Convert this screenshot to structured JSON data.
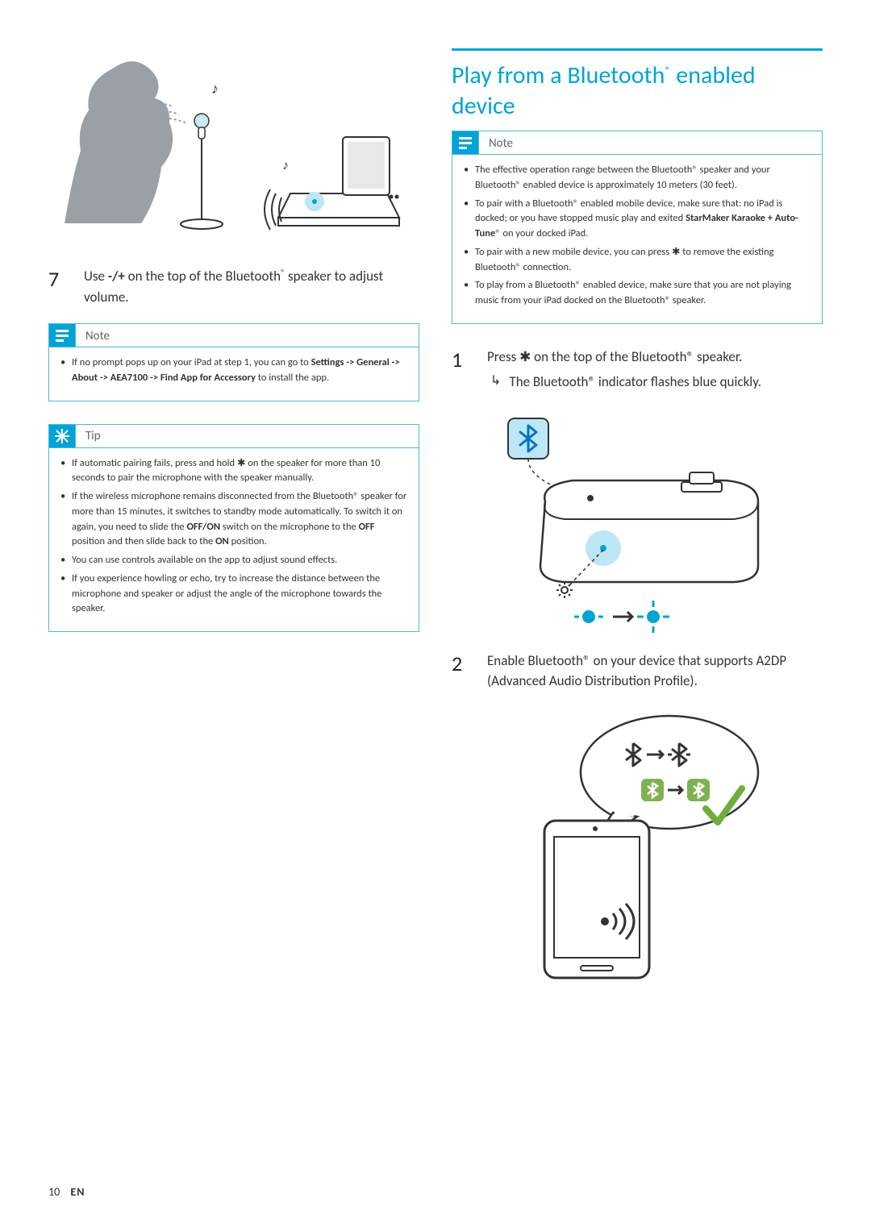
{
  "colors": {
    "accent": "#00a4d6",
    "border": "#4db7d8",
    "text": "#333333",
    "muted": "#666666",
    "silhouette": "#9aa0a6"
  },
  "left": {
    "step7": {
      "num": "7",
      "text_pre": "Use ",
      "text_bold": "-/+",
      "text_post": " on the top of the Bluetooth",
      "sup": "®",
      "text_end": " speaker to adjust volume."
    },
    "note": {
      "label": "Note",
      "items": [
        {
          "pre": "If no prompt pops up on your iPad at step 1, you can go to ",
          "bold": "Settings -> General -> About -> AEA7100 -> Find App for Accessory",
          "post": " to install the app."
        }
      ]
    },
    "tip": {
      "label": "Tip",
      "items": [
        "If automatic pairing fails, press and hold ✱ on the speaker for more than 10 seconds to pair the microphone with the speaker manually.",
        "If the wireless microphone remains disconnected from the Bluetooth® speaker for more than 15 minutes, it switches to standby mode automatically. To switch it on again, you need to slide the OFF/ON switch on the microphone to the OFF position and then slide back to the ON position.",
        "You can use controls available on the app to adjust sound effects.",
        "If you experience howling or echo, try to increase the distance between the microphone and speaker or adjust the angle of the microphone towards the speaker."
      ],
      "bold_tokens": [
        "OFF/ON",
        "OFF",
        "ON"
      ]
    }
  },
  "right": {
    "title_line1": "Play from a Bluetooth",
    "title_sup": "®",
    "title_line2": "enabled device",
    "note": {
      "label": "Note",
      "items": [
        "The effective operation range between the Bluetooth® speaker and your Bluetooth® enabled device is approximately 10 meters (30 feet).",
        "To pair with a Bluetooth® enabled mobile device, make sure that: no iPad is docked; or you have stopped music play and exited StarMaker Karaoke + Auto-Tune® on your docked iPad.",
        "To pair with a new mobile device, you can press ✱ to remove the existing Bluetooth® connection.",
        "To play from a Bluetooth® enabled device, make sure that you are not playing music from your iPad docked on the Bluetooth® speaker."
      ],
      "bold_tokens": [
        "StarMaker Karaoke + Auto-Tune"
      ]
    },
    "step1": {
      "num": "1",
      "text": "Press ✱ on the top of the Bluetooth® speaker.",
      "sub": "The Bluetooth® indicator flashes blue quickly."
    },
    "step2": {
      "num": "2",
      "text": "Enable Bluetooth® on your device that supports A2DP (Advanced Audio Distribution Profile)."
    }
  },
  "footer": {
    "page": "10",
    "lang": "EN"
  }
}
